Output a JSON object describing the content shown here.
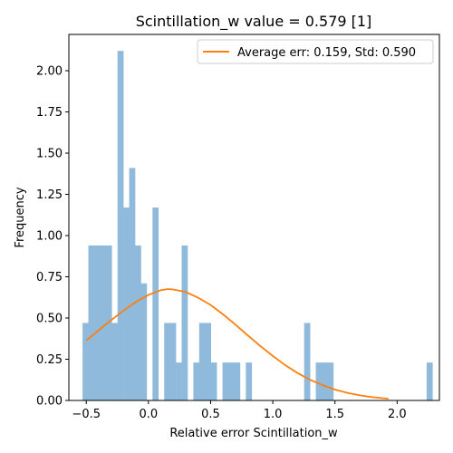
{
  "chart_data": {
    "type": "bar",
    "title": "Scintillation_w value = 0.579 [1]",
    "xlabel": "Relative error Scintillation_w",
    "ylabel": "Frequency",
    "xlim": [
      -0.64,
      2.34
    ],
    "ylim": [
      0,
      2.22
    ],
    "xticks": [
      -0.5,
      0.0,
      0.5,
      1.0,
      1.5,
      2.0
    ],
    "xtick_labels": [
      "−0.5",
      "0.0",
      "0.5",
      "1.0",
      "1.5",
      "2.0"
    ],
    "yticks": [
      0.0,
      0.25,
      0.5,
      0.75,
      1.0,
      1.25,
      1.5,
      1.75,
      2.0
    ],
    "ytick_labels": [
      "0.00",
      "0.25",
      "0.50",
      "0.75",
      "1.00",
      "1.25",
      "1.50",
      "1.75",
      "2.00"
    ],
    "grid": false,
    "legend_position": "top-right",
    "bar_color": "#8fbadb",
    "line_color": "#ff7f0e",
    "histogram": {
      "bin_start": -0.53,
      "bin_width": 0.0469,
      "values": [
        0.47,
        0.94,
        0.94,
        0.94,
        0.94,
        0.47,
        2.12,
        1.17,
        1.41,
        0.94,
        0.71,
        0,
        1.17,
        0,
        0.47,
        0.47,
        0.23,
        0.94,
        0,
        0.23,
        0.47,
        0.47,
        0.23,
        0,
        0.23,
        0.23,
        0.23,
        0,
        0.23,
        0,
        0,
        0,
        0,
        0,
        0,
        0,
        0,
        0,
        0.47,
        0,
        0.23,
        0.23,
        0.23,
        0,
        0,
        0,
        0,
        0,
        0,
        0,
        0,
        0,
        0,
        0,
        0,
        0,
        0,
        0,
        0,
        0.23
      ]
    },
    "series": [
      {
        "name": "Average err: 0.159, Std: 0.590",
        "x": [
          -0.5,
          -0.4,
          -0.3,
          -0.2,
          -0.1,
          0.0,
          0.1,
          0.159,
          0.2,
          0.3,
          0.4,
          0.5,
          0.6,
          0.7,
          0.8,
          0.9,
          1.0,
          1.1,
          1.2,
          1.3,
          1.4,
          1.5,
          1.6,
          1.7,
          1.8,
          1.93
        ],
        "y": [
          0.363,
          0.426,
          0.487,
          0.545,
          0.598,
          0.64,
          0.669,
          0.676,
          0.673,
          0.658,
          0.623,
          0.579,
          0.522,
          0.46,
          0.394,
          0.33,
          0.27,
          0.214,
          0.166,
          0.125,
          0.093,
          0.066,
          0.046,
          0.031,
          0.02,
          0.011
        ]
      }
    ]
  }
}
